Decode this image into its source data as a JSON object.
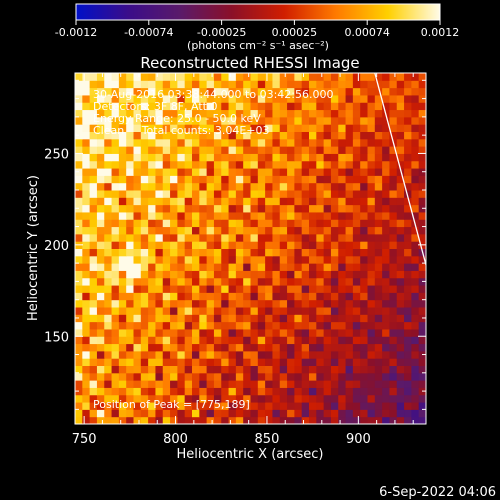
{
  "chart_data": {
    "type": "heatmap",
    "title": "Reconstructed RHESSI Image",
    "xlabel": "Heliocentric X (arcsec)",
    "ylabel": "Heliocentric Y (arcsec)",
    "xlim": [
      745,
      937
    ],
    "ylim": [
      102,
      294
    ],
    "xticks": [
      750,
      800,
      850,
      900
    ],
    "yticks": [
      150,
      200,
      250
    ],
    "colorbar": {
      "range": [
        -0.0012,
        0.0012
      ],
      "ticks": [
        "-0.0012",
        "-0.00074",
        "-0.00025",
        "0.00025",
        "0.00074",
        "0.0012"
      ],
      "label": "(photons cm⁻² s⁻¹ asec⁻²)",
      "colors": [
        "#0010c8",
        "#3a0d8a",
        "#5a1a6a",
        "#8b1028",
        "#d01e00",
        "#ff7a00",
        "#ffd000",
        "#fffbe8"
      ]
    },
    "annotations": [
      "30-Aug-2016 03:38:44.000 to 03:42:56.000",
      "Detectors: 3F 8F, Att 0",
      "Energy Range: 25.0 - 50.0 keV",
      "Clean     Total counts: 3.04E+03"
    ],
    "peak_label": "Position of Peak = [775,189]",
    "peak": [
      775,
      189
    ],
    "limb_line": [
      [
        909,
        294
      ],
      [
        937,
        189
      ]
    ],
    "grid": false
  },
  "footer": {
    "date": "6-Sep-2022 04:06"
  }
}
